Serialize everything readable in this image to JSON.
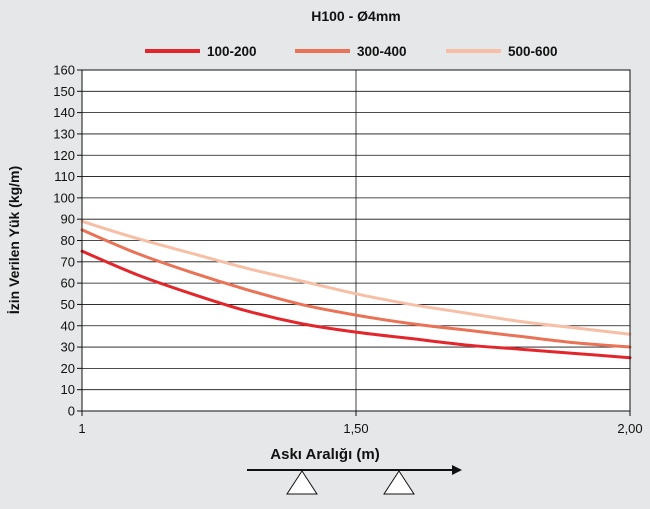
{
  "chart_data": {
    "type": "line",
    "title": "H100 - Ø4mm",
    "xlabel": "Askı Aralığı (m)",
    "ylabel": "İzin Verilen Yük (kg/m)",
    "xlim": [
      1,
      2
    ],
    "ylim": [
      0,
      160
    ],
    "x_ticks": [
      1,
      1.5,
      2
    ],
    "x_tick_labels": [
      "1",
      "1,50",
      "2,00"
    ],
    "y_ticks": [
      0,
      10,
      20,
      30,
      40,
      50,
      60,
      70,
      80,
      90,
      100,
      110,
      120,
      130,
      140,
      150,
      160
    ],
    "grid": true,
    "legend_position": "top",
    "x": [
      1.0,
      1.1,
      1.2,
      1.3,
      1.4,
      1.5,
      1.6,
      1.7,
      1.8,
      1.9,
      2.0
    ],
    "series": [
      {
        "name": "100-200",
        "color": "#e3262b",
        "values": [
          75,
          64,
          55,
          47,
          41,
          37,
          34,
          31,
          29,
          27,
          25
        ]
      },
      {
        "name": "300-400",
        "color": "#ea7256",
        "values": [
          85,
          74,
          65,
          57,
          50,
          45,
          41,
          38,
          35,
          32,
          30
        ]
      },
      {
        "name": "500-600",
        "color": "#f6bfa6",
        "values": [
          89,
          81,
          74,
          67,
          61,
          55,
          50,
          46,
          42,
          39,
          36
        ]
      }
    ]
  }
}
